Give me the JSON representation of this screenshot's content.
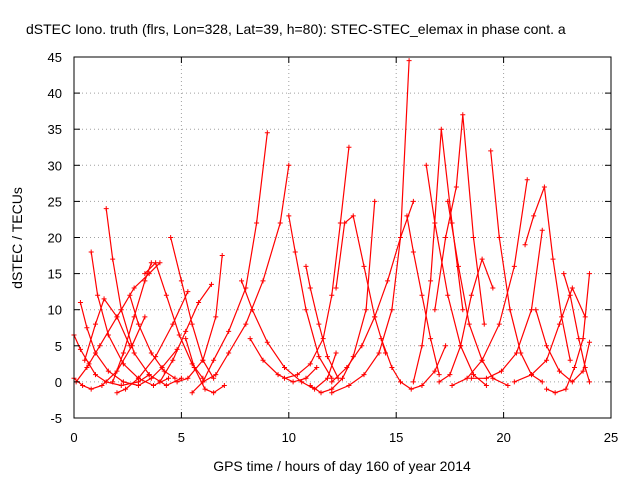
{
  "chart_data": {
    "type": "scatter",
    "title": "dSTEC Iono. truth (flrs, Lon=328, Lat=39, h=80): STEC-STEC_elemax in phase cont. a",
    "xlabel": "GPS time / hours of day 160 of year 2014",
    "ylabel": "dSTEC  / TECUs",
    "xlim": [
      0,
      25
    ],
    "ylim": [
      -5,
      45
    ],
    "xticks": [
      "0",
      "5",
      "10",
      "15",
      "20",
      "25"
    ],
    "yticks": [
      "-5",
      "0",
      "5",
      "10",
      "15",
      "20",
      "25",
      "30",
      "35",
      "40",
      "45"
    ],
    "grid": true,
    "marker": "+",
    "color": "#ff0000",
    "series": [
      {
        "x": [
          0,
          0.3,
          0.7,
          1.0,
          1.5,
          2.2,
          3.0,
          3.5
        ],
        "y": [
          6.5,
          4.5,
          2.5,
          1.0,
          0.0,
          -0.5,
          0.0,
          1.0
        ]
      },
      {
        "x": [
          0,
          0.4,
          0.8,
          1.3,
          2.0,
          2.7,
          3.3
        ],
        "y": [
          0.5,
          -0.5,
          -1.0,
          -0.5,
          1.5,
          5.0,
          9.0
        ]
      },
      {
        "x": [
          0.3,
          0.6,
          1.0,
          1.6,
          2.3,
          3.0,
          3.6,
          4.1,
          4.8
        ],
        "y": [
          11.0,
          7.5,
          4.0,
          1.5,
          0.0,
          -0.5,
          0.5,
          2.0,
          4.5
        ]
      },
      {
        "x": [
          0.8,
          1.1,
          1.6,
          2.3,
          3.0,
          3.7,
          4.4
        ],
        "y": [
          18.0,
          12.0,
          6.5,
          2.5,
          0.5,
          -0.5,
          0.5
        ]
      },
      {
        "x": [
          0.1,
          0.6,
          1.2,
          2.0,
          2.8,
          3.5,
          4.0
        ],
        "y": [
          0.0,
          2.0,
          5.0,
          9.0,
          13.0,
          15.0,
          16.5
        ]
      },
      {
        "x": [
          1.5,
          1.8,
          2.2,
          2.8,
          3.5,
          4.3,
          5.0
        ],
        "y": [
          24.0,
          17.0,
          10.0,
          4.0,
          1.0,
          -0.5,
          0.5
        ]
      },
      {
        "x": [
          0.5,
          1.0,
          1.4,
          2.0,
          2.6
        ],
        "y": [
          3.0,
          8.0,
          11.5,
          9.0,
          5.0
        ]
      },
      {
        "x": [
          1.8,
          2.3,
          2.8,
          3.3,
          3.6
        ],
        "y": [
          0.0,
          4.0,
          9.0,
          14.0,
          16.5
        ]
      },
      {
        "x": [
          2.6,
          3.0,
          3.6,
          4.2,
          4.7
        ],
        "y": [
          12.0,
          8.0,
          4.0,
          1.5,
          0.5
        ]
      },
      {
        "x": [
          2.0,
          2.4,
          3.0,
          3.8,
          4.6,
          5.3
        ],
        "y": [
          -1.5,
          -1.0,
          0.5,
          3.5,
          8.0,
          12.5
        ]
      },
      {
        "x": [
          3.3,
          3.8,
          4.3,
          4.9,
          5.5,
          6.0
        ],
        "y": [
          15.0,
          16.5,
          12.0,
          6.5,
          2.5,
          0.5
        ]
      },
      {
        "x": [
          4.5,
          5.0,
          5.5,
          6.0,
          6.5
        ],
        "y": [
          20.0,
          14.0,
          8.0,
          3.0,
          0.5
        ]
      },
      {
        "x": [
          4.0,
          4.6,
          5.2,
          5.8,
          6.4
        ],
        "y": [
          0.0,
          3.0,
          7.0,
          11.0,
          13.5
        ]
      },
      {
        "x": [
          5.2,
          5.6,
          6.1,
          6.5,
          7.0
        ],
        "y": [
          6.0,
          2.0,
          -1.0,
          -1.5,
          -0.5
        ]
      },
      {
        "x": [
          4.8,
          5.3,
          6.0,
          6.6,
          6.9
        ],
        "y": [
          0.0,
          0.5,
          3.0,
          9.0,
          17.5
        ]
      },
      {
        "x": [
          5.5,
          6.0,
          6.5,
          7.2,
          8.0,
          8.5,
          9.0
        ],
        "y": [
          -1.5,
          0.0,
          3.0,
          7.0,
          13.0,
          22.0,
          34.5
        ]
      },
      {
        "x": [
          6.0,
          6.6,
          7.2,
          8.0,
          8.8,
          9.6,
          10.0
        ],
        "y": [
          0.0,
          1.0,
          4.0,
          8.0,
          14.0,
          22.0,
          30.0
        ]
      },
      {
        "x": [
          7.8,
          8.3,
          9.0,
          9.8,
          10.6,
          11.2,
          11.8,
          12.2
        ],
        "y": [
          14.0,
          10.0,
          5.5,
          2.0,
          0.0,
          -1.0,
          0.5,
          4.0
        ]
      },
      {
        "x": [
          8.2,
          8.8,
          9.5,
          10.2,
          10.8,
          11.3
        ],
        "y": [
          6.0,
          3.0,
          1.0,
          0.0,
          0.5,
          2.0
        ]
      },
      {
        "x": [
          10.0,
          10.3,
          10.8,
          11.4,
          12.0
        ],
        "y": [
          23.0,
          18.0,
          10.0,
          3.5,
          0.5
        ]
      },
      {
        "x": [
          10.8,
          11.0,
          11.4,
          11.8,
          12.3
        ],
        "y": [
          16.0,
          13.0,
          8.0,
          3.5,
          0.5
        ]
      },
      {
        "x": [
          9.8,
          10.4,
          11.0,
          11.6,
          12.0,
          12.4,
          12.8
        ],
        "y": [
          0.5,
          1.0,
          2.5,
          6.0,
          12.0,
          22.0,
          32.5
        ]
      },
      {
        "x": [
          11.0,
          11.5,
          12.0,
          12.5,
          13.0,
          13.6,
          14.0
        ],
        "y": [
          -0.5,
          -1.5,
          -1.0,
          0.5,
          3.5,
          10.0,
          25.0
        ]
      },
      {
        "x": [
          12.2,
          12.6,
          13.0,
          13.5,
          14.0,
          14.5
        ],
        "y": [
          13.0,
          22.0,
          23.0,
          16.0,
          9.0,
          4.0
        ]
      },
      {
        "x": [
          12.0,
          12.8,
          13.5,
          14.2,
          14.8,
          15.2,
          15.6
        ],
        "y": [
          -1.5,
          -0.5,
          1.0,
          4.0,
          10.0,
          20.0,
          44.5
        ]
      },
      {
        "x": [
          12.0,
          12.7,
          13.4,
          14.0,
          14.6,
          15.2,
          15.8
        ],
        "y": [
          0.0,
          2.0,
          5.0,
          9.0,
          14.0,
          20.0,
          25.0
        ]
      },
      {
        "x": [
          14.3,
          14.8,
          15.2,
          15.7,
          16.2,
          16.8,
          17.3
        ],
        "y": [
          6.0,
          2.0,
          0.0,
          -1.0,
          -0.5,
          1.5,
          5.0
        ]
      },
      {
        "x": [
          15.5,
          15.8,
          16.2,
          16.6,
          17.0
        ],
        "y": [
          23.0,
          18.0,
          12.0,
          6.0,
          1.0
        ]
      },
      {
        "x": [
          15.8,
          16.2,
          16.6,
          17.1,
          17.6,
          18.1
        ],
        "y": [
          0.0,
          5.0,
          14.0,
          35.0,
          22.0,
          10.0
        ]
      },
      {
        "x": [
          16.4,
          16.8,
          17.4,
          18.0,
          18.6,
          19.2
        ],
        "y": [
          30.0,
          22.0,
          12.0,
          5.0,
          1.0,
          -0.5
        ]
      },
      {
        "x": [
          16.8,
          17.3,
          17.8,
          18.1,
          18.6,
          19.1
        ],
        "y": [
          10.0,
          20.0,
          27.0,
          37.0,
          20.0,
          8.0
        ]
      },
      {
        "x": [
          17.0,
          17.5,
          18.0,
          18.5,
          19.0,
          19.5
        ],
        "y": [
          0.0,
          1.0,
          5.0,
          12.0,
          17.0,
          13.0
        ]
      },
      {
        "x": [
          17.4,
          17.9,
          18.4,
          19.0,
          19.5,
          20.2
        ],
        "y": [
          25.0,
          16.0,
          8.0,
          3.0,
          0.5,
          -0.5
        ]
      },
      {
        "x": [
          19.4,
          19.8,
          20.3,
          20.8,
          21.3,
          21.8
        ],
        "y": [
          32.0,
          20.0,
          10.0,
          4.0,
          1.0,
          0.0
        ]
      },
      {
        "x": [
          17.6,
          18.3,
          19.0,
          19.8,
          20.5,
          21.1
        ],
        "y": [
          -0.5,
          0.5,
          3.0,
          8.0,
          16.0,
          28.0
        ]
      },
      {
        "x": [
          18.5,
          19.2,
          19.9,
          20.6,
          21.3,
          21.8
        ],
        "y": [
          0.5,
          0.5,
          1.5,
          4.0,
          10.0,
          21.0
        ]
      },
      {
        "x": [
          21.0,
          21.4,
          21.9,
          22.3,
          22.7,
          23.1
        ],
        "y": [
          19.0,
          23.0,
          27.0,
          17.0,
          9.0,
          3.0
        ]
      },
      {
        "x": [
          20.5,
          21.3,
          22.0,
          22.6,
          23.2,
          23.8
        ],
        "y": [
          0.0,
          1.0,
          3.0,
          8.0,
          13.0,
          9.0
        ]
      },
      {
        "x": [
          22.0,
          22.4,
          22.9,
          23.3,
          23.7,
          24.0
        ],
        "y": [
          -1.0,
          -1.5,
          -1.0,
          2.0,
          6.0,
          15.0
        ]
      },
      {
        "x": [
          21.5,
          22.0,
          22.6,
          23.2,
          23.7,
          24.0
        ],
        "y": [
          10.0,
          5.0,
          1.5,
          0.0,
          1.5,
          5.5
        ]
      },
      {
        "x": [
          22.8,
          23.1,
          23.5,
          23.8,
          24.0
        ],
        "y": [
          15.0,
          12.0,
          6.0,
          2.0,
          0.0
        ]
      }
    ]
  }
}
